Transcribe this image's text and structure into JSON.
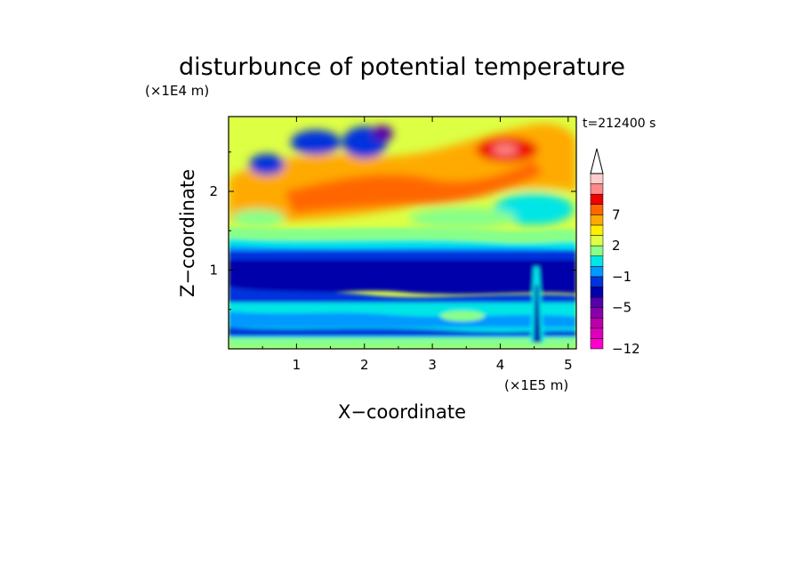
{
  "chart_data": {
    "type": "heatmap",
    "title": "disturbunce of potential temperature",
    "time_label": "t=212400 s",
    "xlabel": "X−coordinate",
    "ylabel": "Z−coordinate",
    "x_unit": "(×1E5 m)",
    "y_unit": "(×1E4 m)",
    "xlim": [
      0,
      5.12
    ],
    "ylim": [
      0,
      2.95
    ],
    "x_ticks": [
      "1",
      "2",
      "3",
      "4",
      "5"
    ],
    "y_ticks": [
      "1",
      "2"
    ],
    "colorbar": {
      "levels": [
        -12,
        -11,
        -9,
        -7,
        -5,
        -4,
        -3,
        -1,
        0,
        1,
        2,
        4,
        6,
        7,
        9,
        11
      ],
      "labels": [
        "−12",
        "−5",
        "−1",
        "2",
        "7"
      ],
      "colors": [
        "#ff00cc",
        "#dd00bb",
        "#bb00aa",
        "#8800aa",
        "#5500aa",
        "#0000aa",
        "#0033dd",
        "#0099ff",
        "#00e5e5",
        "#88ff88",
        "#ddff44",
        "#ffee00",
        "#ffaa00",
        "#ff6600",
        "#ee0000",
        "#ff8888",
        "#ffcccc"
      ],
      "extend": "max"
    },
    "grid": false
  }
}
